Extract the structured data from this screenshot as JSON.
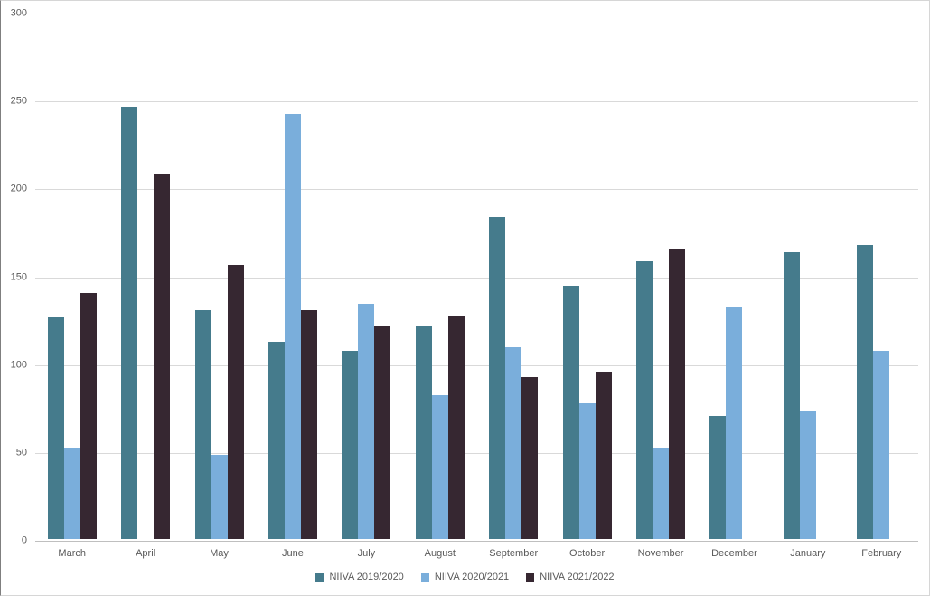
{
  "chart_data": {
    "type": "bar",
    "title": "",
    "xlabel": "",
    "ylabel": "",
    "categories": [
      "March",
      "April",
      "May",
      "June",
      "July",
      "August",
      "September",
      "October",
      "November",
      "December",
      "January",
      "February"
    ],
    "series": [
      {
        "name": "NIIVA 2019/2020",
        "color": "#457b8c",
        "values": [
          126,
          246,
          130,
          112,
          107,
          121,
          183,
          144,
          158,
          70,
          163,
          167
        ]
      },
      {
        "name": "NIIVA 2020/2021",
        "color": "#7aaedb",
        "values": [
          52,
          0,
          48,
          242,
          134,
          82,
          109,
          77,
          52,
          132,
          73,
          107
        ]
      },
      {
        "name": "NIIVA 2021/2022",
        "color": "#362731",
        "values": [
          140,
          208,
          156,
          130,
          121,
          127,
          92,
          95,
          165,
          0,
          0,
          0
        ]
      }
    ],
    "ylim": [
      0,
      300
    ],
    "yticks": [
      0,
      50,
      100,
      150,
      200,
      250,
      300
    ],
    "grid": true,
    "legend_position": "bottom",
    "colors": {
      "gridline": "#d9d9d9",
      "axis_line": "#bfbfbf",
      "tick_label": "#595959",
      "background": "#ffffff"
    }
  }
}
